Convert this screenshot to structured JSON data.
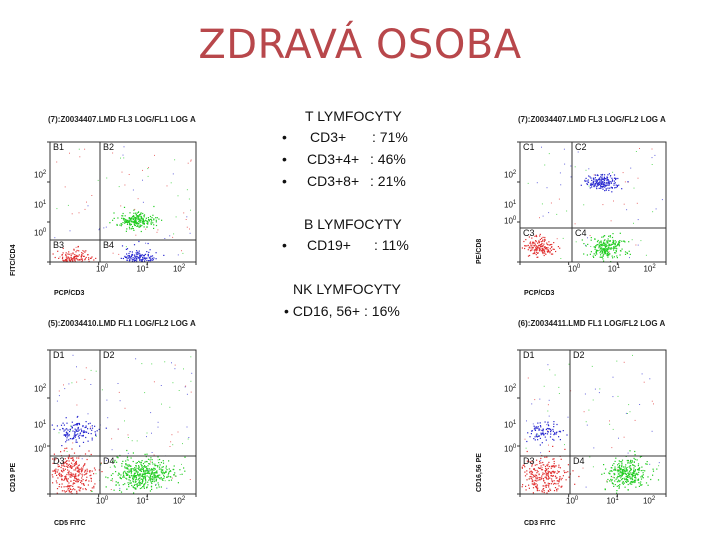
{
  "title": "ZDRAVÁ OSOBA",
  "t_section": {
    "heading": "T LYMFOCYTY",
    "items": [
      {
        "bullet": "•",
        "label": "CD3+",
        "value": ": 71%"
      },
      {
        "bullet": "•",
        "label": "CD3+4+",
        "value": ": 46%"
      },
      {
        "bullet": "•",
        "label": "CD3+8+",
        "value": ": 21%"
      }
    ]
  },
  "b_section": {
    "heading": "B LYMFOCYTY",
    "items": [
      {
        "bullet": "•",
        "label": "CD19+",
        "value": ": 11%"
      }
    ]
  },
  "nk_section": {
    "heading": "NK  LYMFOCYTY",
    "items": [
      {
        "text": "• CD16, 56+ :  16%"
      }
    ]
  },
  "plots": [
    {
      "id": "top-left",
      "header": "(7):Z0034407.LMD FL3 LOG/FL1 LOG A",
      "quadrants": [
        "B1",
        "B2",
        "B3",
        "B4"
      ],
      "y_axis_label": "FITC/CD4",
      "x_axis_label": "PCP/CD3",
      "y_ticks": [
        "10",
        "10",
        "10"
      ],
      "y_exp": [
        "2",
        "1",
        "0"
      ],
      "x_ticks": [
        "10",
        "10",
        "10"
      ],
      "x_exp": [
        "0",
        "1",
        "2"
      ]
    },
    {
      "id": "top-right",
      "header": "(7):Z0034407.LMD FL3 LOG/FL2 LOG A",
      "quadrants": [
        "C1",
        "C2",
        "C3",
        "C4"
      ],
      "y_axis_label": "PE/CD8",
      "x_axis_label": "PCP/CD3",
      "y_ticks": [
        "10",
        "10",
        "10"
      ],
      "y_exp": [
        "2",
        "1",
        "0"
      ],
      "x_ticks": [
        "10",
        "10",
        "10"
      ],
      "x_exp": [
        "0",
        "1",
        "2"
      ]
    },
    {
      "id": "bottom-left",
      "header": "(5):Z0034410.LMD FL1 LOG/FL2 LOG A",
      "quadrants": [
        "D1",
        "D2",
        "D3",
        "D4"
      ],
      "y_axis_label": "CD19 PE",
      "x_axis_label": "CD5 FITC",
      "y_ticks": [
        "10",
        "10",
        "10"
      ],
      "y_exp": [
        "2",
        "1",
        "0"
      ],
      "x_ticks": [
        "10",
        "10",
        "10"
      ],
      "x_exp": [
        "0",
        "1",
        "2"
      ]
    },
    {
      "id": "bottom-right",
      "header": "(6):Z0034411.LMD FL1 LOG/FL2 LOG A",
      "quadrants": [
        "D1",
        "D2",
        "D3",
        "D4"
      ],
      "y_axis_label": "CD16,56 PE",
      "x_axis_label": "CD3 FITC",
      "y_ticks": [
        "10",
        "10",
        "10"
      ],
      "y_exp": [
        "2",
        "1",
        "0"
      ],
      "x_ticks": [
        "10",
        "10",
        "10"
      ],
      "x_exp": [
        "0",
        "1",
        "2"
      ]
    }
  ],
  "colors": {
    "title": "#b8474b",
    "red": "#e03030",
    "green": "#22cc22",
    "blue": "#2a2ad0",
    "axis": "#333333"
  }
}
